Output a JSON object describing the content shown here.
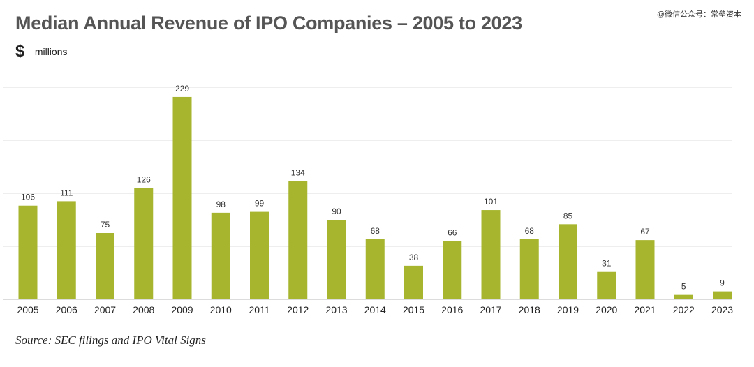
{
  "header": {
    "title": "Median Annual Revenue of IPO Companies – 2005 to 2023",
    "currency_symbol": "$",
    "units": "millions"
  },
  "watermark": "@微信公众号：常垒资本",
  "footer": {
    "source": "Source: SEC filings and IPO Vital Signs"
  },
  "colors": {
    "bar": "#a6b52d",
    "grid": "#e3e3e3",
    "axis": "#c8c8c8"
  },
  "chart_data": {
    "type": "bar",
    "categories": [
      "2005",
      "2006",
      "2007",
      "2008",
      "2009",
      "2010",
      "2011",
      "2012",
      "2013",
      "2014",
      "2015",
      "2016",
      "2017",
      "2018",
      "2019",
      "2020",
      "2021",
      "2022",
      "2023"
    ],
    "values": [
      106,
      111,
      75,
      126,
      229,
      98,
      99,
      134,
      90,
      68,
      38,
      66,
      101,
      68,
      85,
      31,
      67,
      5,
      9
    ],
    "title": "Median Annual Revenue of IPO Companies – 2005 to 2023",
    "ylabel": "millions",
    "ylim": [
      0,
      240
    ],
    "grid": true,
    "legend": "none"
  }
}
